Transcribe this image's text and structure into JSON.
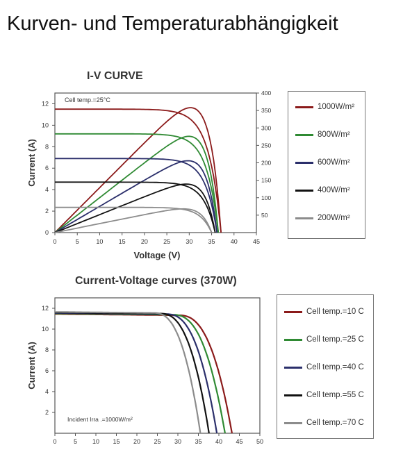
{
  "page_title": "Kurven- und Temperaturabhängigkeit",
  "chart_data": [
    {
      "type": "line",
      "title": "I-V CURVE",
      "xlabel": "Voltage (V)",
      "ylabel": "Current (A)",
      "xlim": [
        0,
        45
      ],
      "ylim": [
        0,
        13
      ],
      "y2lim": [
        0,
        400
      ],
      "x_ticks": [
        "0",
        "5",
        "10",
        "15",
        "20",
        "25",
        "30",
        "35",
        "40",
        "45"
      ],
      "y_ticks": [
        "0",
        "2",
        "4",
        "6",
        "8",
        "10",
        "12"
      ],
      "y2_ticks": [
        "50",
        "100",
        "150",
        "200",
        "250",
        "300",
        "350",
        "400"
      ],
      "annotation": "Cell temp.=25°C",
      "legend_position": "right",
      "series": [
        {
          "name": "1000W/m²",
          "color": "#8b1a1a",
          "isc": 11.5,
          "voc": 37.1,
          "vmp": 31.1,
          "imp": 11.0,
          "pmax": 358
        },
        {
          "name": "800W/m²",
          "color": "#2f8a33",
          "isc": 9.2,
          "voc": 36.5,
          "vmp": 30.8,
          "imp": 8.8,
          "pmax": 276
        },
        {
          "name": "600W/m²",
          "color": "#2b2f6b",
          "isc": 6.9,
          "voc": 36.2,
          "vmp": 30.6,
          "imp": 6.5,
          "pmax": 206
        },
        {
          "name": "400W/m²",
          "color": "#111111",
          "isc": 4.7,
          "voc": 35.8,
          "vmp": 30.2,
          "imp": 4.4,
          "pmax": 139
        },
        {
          "name": "200W/m²",
          "color": "#8c8c8c",
          "isc": 2.35,
          "voc": 35.0,
          "vmp": 29.5,
          "imp": 2.2,
          "pmax": 68
        }
      ]
    },
    {
      "type": "line",
      "title": "Current-Voltage curves (370W)",
      "xlabel": "",
      "ylabel": "Current (A)",
      "xlim": [
        0,
        50
      ],
      "ylim": [
        0,
        13
      ],
      "x_ticks": [
        "0",
        "5",
        "10",
        "15",
        "20",
        "25",
        "30",
        "35",
        "40",
        "45",
        "50"
      ],
      "y_ticks": [
        "2",
        "4",
        "6",
        "8",
        "10",
        "12"
      ],
      "annotation": "Incident Irra .=1000W/m²",
      "legend_position": "right",
      "series": [
        {
          "name": "Cell temp.=10 C",
          "color": "#8b1a1a",
          "isc": 11.45,
          "voc": 43.2,
          "knee": 30.0
        },
        {
          "name": "Cell temp.=25 C",
          "color": "#2f8a33",
          "isc": 11.5,
          "voc": 41.5,
          "knee": 28.5
        },
        {
          "name": "Cell temp.=40 C",
          "color": "#2b2f6b",
          "isc": 11.55,
          "voc": 39.5,
          "knee": 27.0
        },
        {
          "name": "Cell temp.=55 C",
          "color": "#111111",
          "isc": 11.6,
          "voc": 37.6,
          "knee": 25.5
        },
        {
          "name": "Cell temp.=70 C",
          "color": "#8c8c8c",
          "isc": 11.65,
          "voc": 35.5,
          "knee": 24.0
        }
      ]
    }
  ]
}
